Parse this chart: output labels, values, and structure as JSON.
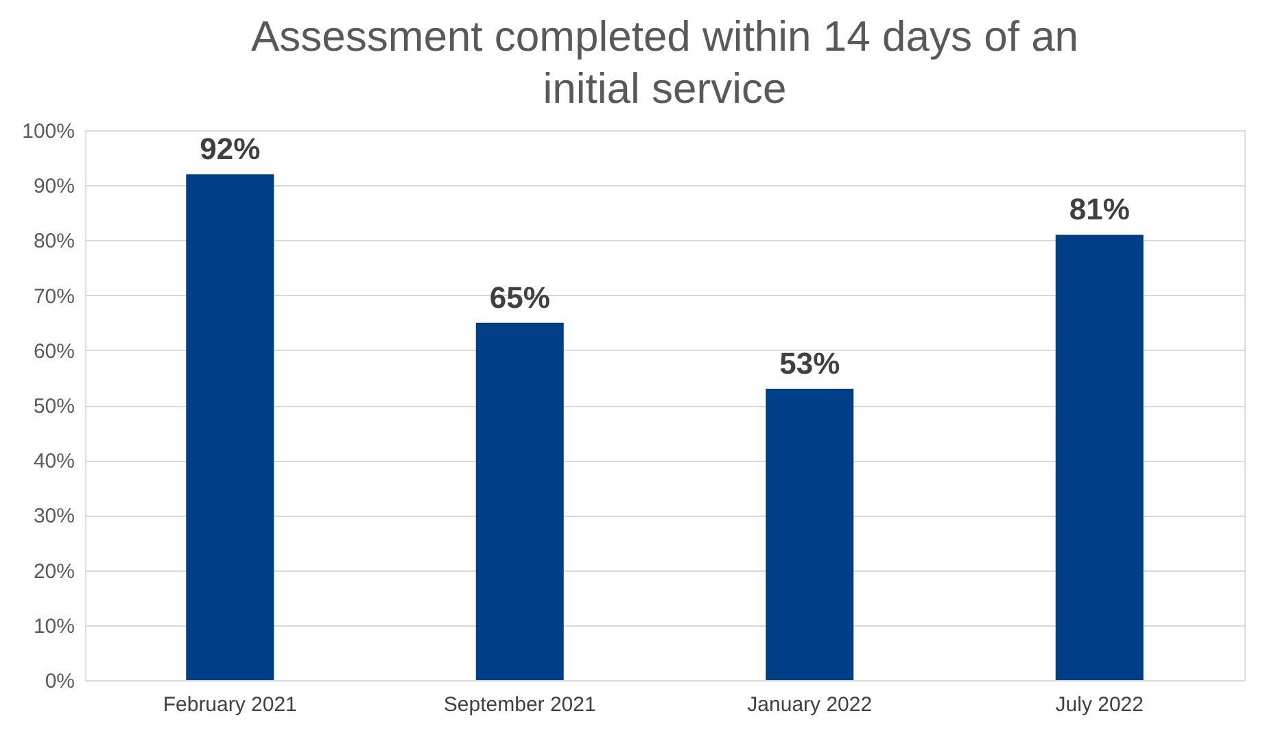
{
  "chart_data": {
    "type": "bar",
    "title": "Assessment completed within 14 days of an initial service",
    "categories": [
      "February 2021",
      "September 2021",
      "January 2022",
      "July 2022"
    ],
    "values": [
      92,
      65,
      53,
      81
    ],
    "value_labels": [
      "92%",
      "65%",
      "53%",
      "81%"
    ],
    "color": "#003f87",
    "ylim": [
      0,
      100
    ],
    "yticks": [
      {
        "value": 0,
        "label": "0%"
      },
      {
        "value": 10,
        "label": "10%"
      },
      {
        "value": 20,
        "label": "20%"
      },
      {
        "value": 30,
        "label": "30%"
      },
      {
        "value": 40,
        "label": "40%"
      },
      {
        "value": 50,
        "label": "50%"
      },
      {
        "value": 60,
        "label": "60%"
      },
      {
        "value": 70,
        "label": "70%"
      },
      {
        "value": 80,
        "label": "80%"
      },
      {
        "value": 90,
        "label": "90%"
      },
      {
        "value": 100,
        "label": "100%"
      }
    ],
    "grid": "y"
  }
}
